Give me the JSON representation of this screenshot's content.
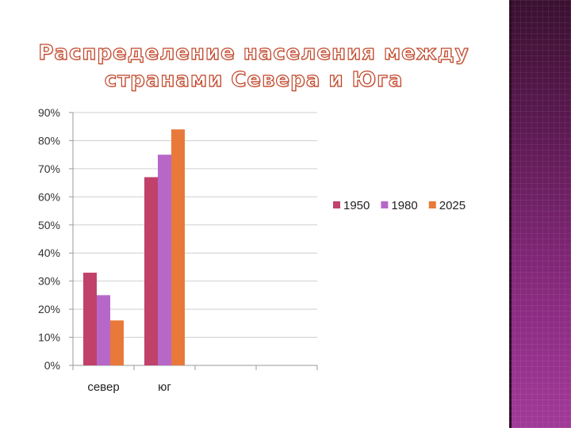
{
  "slide": {
    "title_line1": "Распределение населения между",
    "title_line2": "странами Севера и Юга"
  },
  "colors": {
    "panel": "#7a2570",
    "title_outline": "#c0462a"
  },
  "chart_data": {
    "type": "bar",
    "categories": [
      "север",
      "юг",
      "",
      ""
    ],
    "series": [
      {
        "name": "1950",
        "values": [
          33,
          67,
          null,
          null
        ],
        "color": "#c0426a"
      },
      {
        "name": "1980",
        "values": [
          25,
          75,
          null,
          null
        ],
        "color": "#b767c8"
      },
      {
        "name": "2025",
        "values": [
          16,
          84,
          null,
          null
        ],
        "color": "#e8793a"
      }
    ],
    "ylim": [
      0,
      90
    ],
    "yticks": [
      "0%",
      "10%",
      "20%",
      "30%",
      "40%",
      "50%",
      "60%",
      "70%",
      "80%",
      "90%"
    ],
    "grid": true,
    "legend": "right"
  }
}
